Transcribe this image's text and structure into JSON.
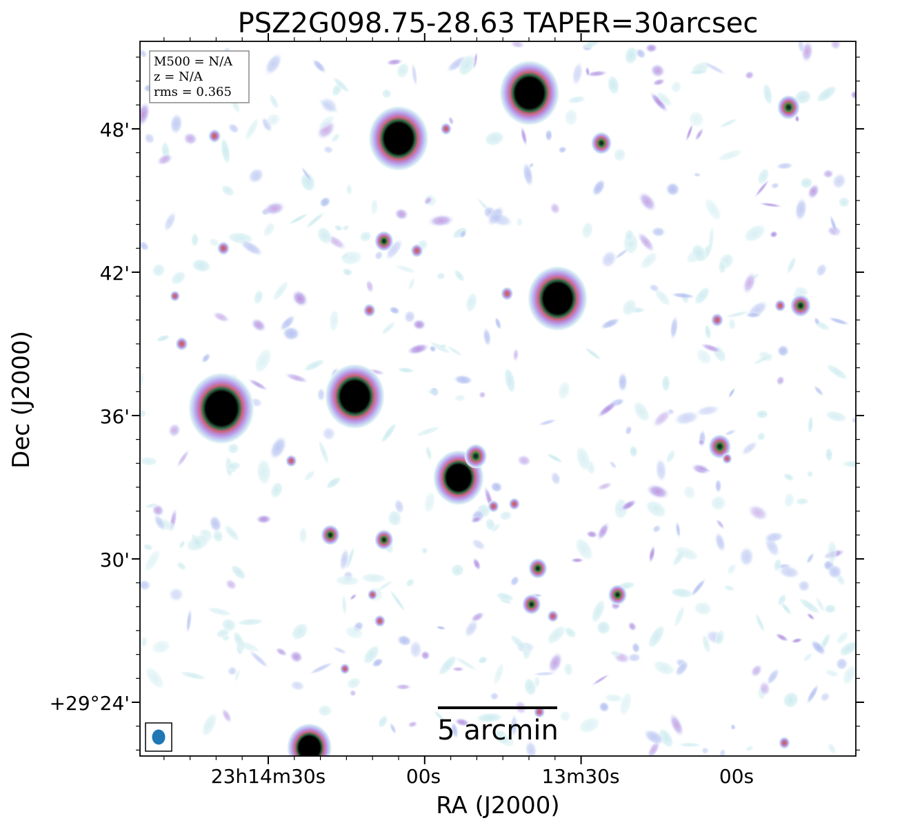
{
  "chart_data": {
    "type": "heatmap",
    "title": "PSZ2G098.75-28.63 TAPER=30arcsec",
    "xlabel": "RA (J2000)",
    "ylabel": "Dec (J2000)",
    "x_ticks": [
      "23h14m30s",
      "00s",
      "13m30s",
      "00s"
    ],
    "y_ticks": [
      "+29°24'",
      "30'",
      "36'",
      "42'",
      "48'"
    ],
    "info_box": [
      "M500 = N/A",
      "z = N/A",
      "rms = 0.365"
    ],
    "scalebar_label": "5 arcmin",
    "colormap": [
      "#ffffff",
      "#cfeef0",
      "#b9c8f2",
      "#b98fe2",
      "#c9637a",
      "#3d7a4a",
      "#000000"
    ],
    "beam_color": "#1f77b4",
    "sources": [
      {
        "ra": "23:13:39.9",
        "dec": "+29:49.5",
        "flux": "strong",
        "r": 1.0
      },
      {
        "ra": "23:14:05.0",
        "dec": "+29:47.6",
        "flux": "strong",
        "r": 1.0
      },
      {
        "ra": "23:13:34.5",
        "dec": "+29:40.9",
        "flux": "strong",
        "r": 1.0
      },
      {
        "ra": "23:14:13.4",
        "dec": "+29:36.8",
        "flux": "strong",
        "r": 1.0
      },
      {
        "ra": "23:14:39.0",
        "dec": "+29:36.3",
        "flux": "strong",
        "r": 1.1
      },
      {
        "ra": "23:13:53.5",
        "dec": "+29:33.4",
        "flux": "strong",
        "r": 0.85
      },
      {
        "ra": "23:14:22.1",
        "dec": "+29:22.1",
        "flux": "strong",
        "r": 0.75
      },
      {
        "ra": "23:13:50.2",
        "dec": "+29:34.3",
        "flux": "medium",
        "r": 0.6
      },
      {
        "ra": "23:13:26.1",
        "dec": "+29:47.4",
        "flux": "medium",
        "r": 0.55
      },
      {
        "ra": "23:12:50.2",
        "dec": "+29:48.9",
        "flux": "medium",
        "r": 0.6
      },
      {
        "ra": "23:13:03.4",
        "dec": "+29:34.7",
        "flux": "medium",
        "r": 0.6
      },
      {
        "ra": "23:14:07.8",
        "dec": "+29:43.3",
        "flux": "medium",
        "r": 0.5
      },
      {
        "ra": "23:13:38.3",
        "dec": "+29:29.6",
        "flux": "medium",
        "r": 0.5
      },
      {
        "ra": "23:13:39.5",
        "dec": "+29:28.1",
        "flux": "medium",
        "r": 0.5
      },
      {
        "ra": "23:13:23.0",
        "dec": "+29:28.5",
        "flux": "medium",
        "r": 0.5
      },
      {
        "ra": "23:14:07.8",
        "dec": "+29:30.8",
        "flux": "medium",
        "r": 0.5
      },
      {
        "ra": "23:14:18.1",
        "dec": "+29:31.0",
        "flux": "medium",
        "r": 0.5
      },
      {
        "ra": "23:12:47.9",
        "dec": "+29:40.6",
        "flux": "medium",
        "r": 0.55
      },
      {
        "ra": "23:14:40.3",
        "dec": "+29:47.7",
        "flux": "weak",
        "r": 0.5
      },
      {
        "ra": "23:14:38.6",
        "dec": "+29:43.0",
        "flux": "weak",
        "r": 0.5
      },
      {
        "ra": "23:14:46.6",
        "dec": "+29:39.0",
        "flux": "weak",
        "r": 0.5
      },
      {
        "ra": "23:14:01.5",
        "dec": "+29:42.9",
        "flux": "weak",
        "r": 0.5
      },
      {
        "ra": "23:14:10.6",
        "dec": "+29:40.4",
        "flux": "weak",
        "r": 0.5
      },
      {
        "ra": "23:13:44.2",
        "dec": "+29:41.1",
        "flux": "weak",
        "r": 0.5
      },
      {
        "ra": "23:13:55.9",
        "dec": "+29:48.0",
        "flux": "weak",
        "r": 0.45
      },
      {
        "ra": "23:13:03.9",
        "dec": "+29:40.0",
        "flux": "weak",
        "r": 0.5
      },
      {
        "ra": "23:12:51.8",
        "dec": "+29:40.6",
        "flux": "weak",
        "r": 0.45
      },
      {
        "ra": "23:13:35.4",
        "dec": "+29:27.6",
        "flux": "weak",
        "r": 0.45
      },
      {
        "ra": "23:14:08.6",
        "dec": "+29:27.4",
        "flux": "weak",
        "r": 0.45
      },
      {
        "ra": "23:14:10.0",
        "dec": "+29:28.5",
        "flux": "weak",
        "r": 0.4
      },
      {
        "ra": "23:14:15.3",
        "dec": "+29:25.4",
        "flux": "weak",
        "r": 0.4
      },
      {
        "ra": "23:13:38.0",
        "dec": "+29:23.6",
        "flux": "weak",
        "r": 0.45
      },
      {
        "ra": "23:12:51.0",
        "dec": "+29:22.3",
        "flux": "weak",
        "r": 0.45
      },
      {
        "ra": "23:13:42.8",
        "dec": "+29:32.3",
        "flux": "weak",
        "r": 0.45
      },
      {
        "ra": "23:13:46.8",
        "dec": "+29:32.2",
        "flux": "weak",
        "r": 0.45
      },
      {
        "ra": "23:14:25.6",
        "dec": "+29:34.1",
        "flux": "weak",
        "r": 0.45
      },
      {
        "ra": "23:13:02.0",
        "dec": "+29:34.2",
        "flux": "weak",
        "r": 0.4
      },
      {
        "ra": "23:14:47.9",
        "dec": "+29:41.0",
        "flux": "weak",
        "r": 0.4
      }
    ],
    "noise": "diffuse low-level emission patches, mostly light cyan/lavender, scattered across field"
  }
}
